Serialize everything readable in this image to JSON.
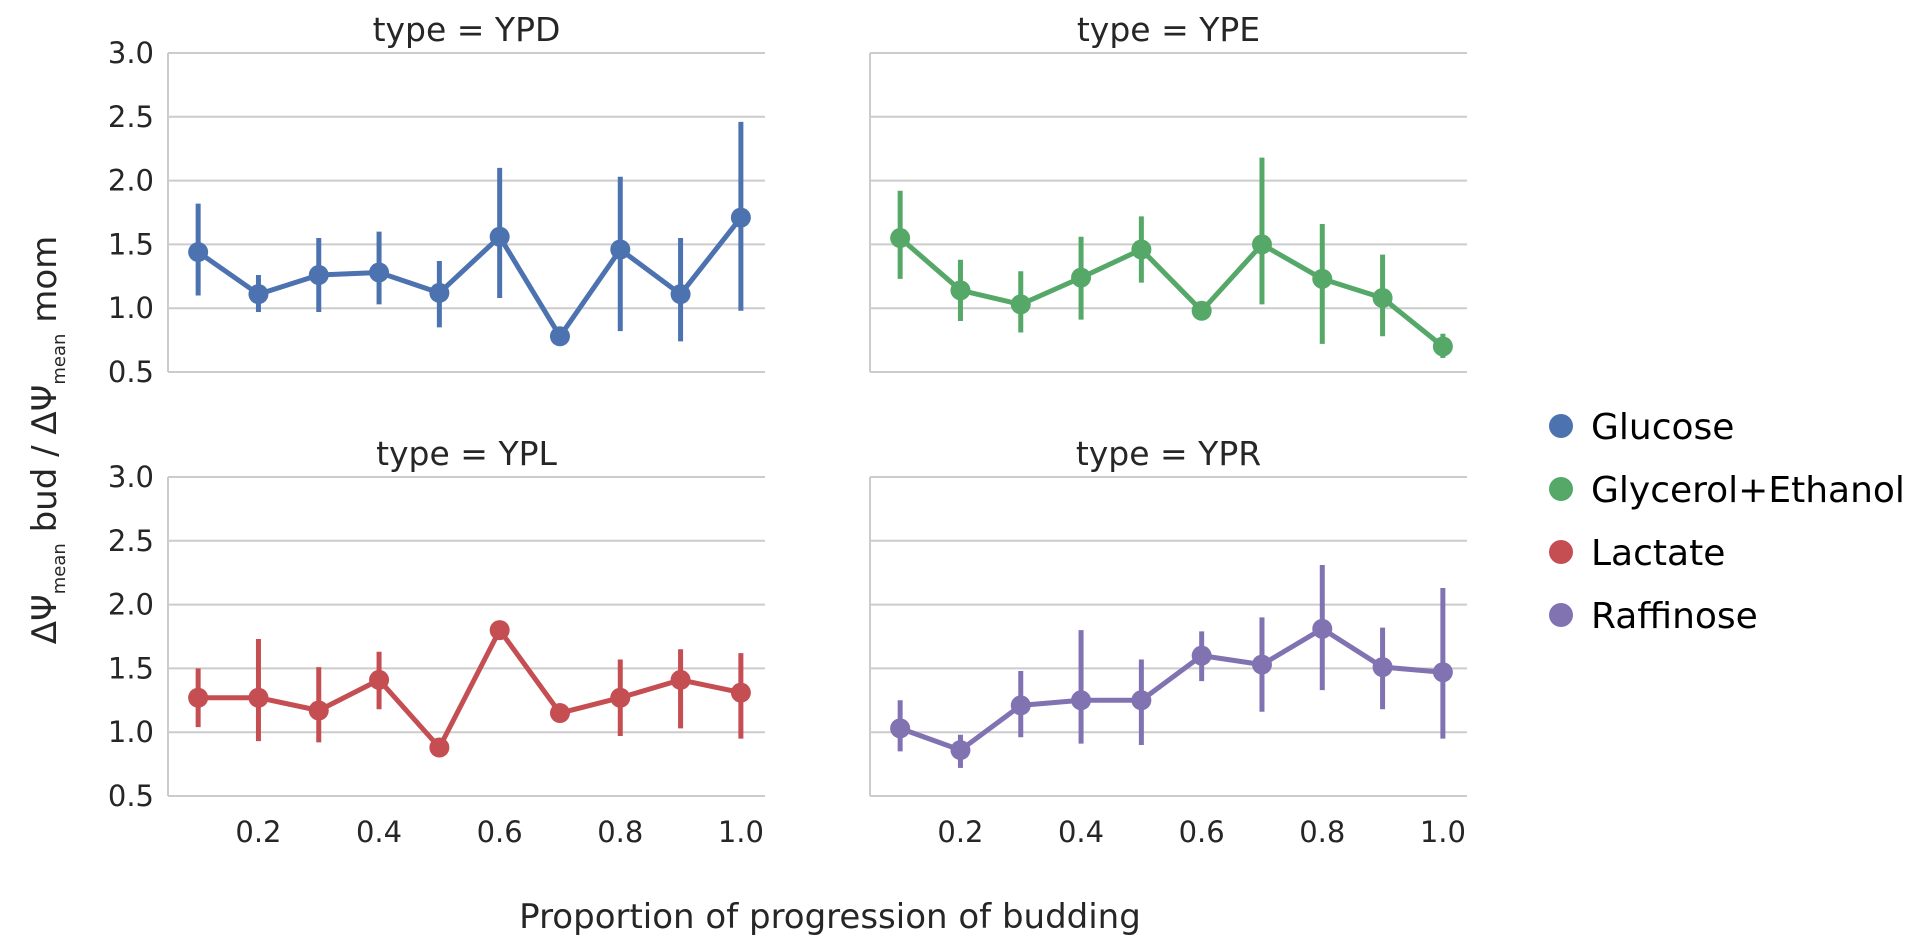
{
  "chart_data": {
    "type": "line",
    "xlabel": "Proportion of progression of budding",
    "ylabel": {
      "part1": "ΔΨ",
      "sub1": "mean",
      "part2": " bud / ΔΨ",
      "sub2": "mean",
      "part3": " mom"
    },
    "x_ticks": [
      0.2,
      0.4,
      0.6,
      0.8,
      1.0
    ],
    "x_tick_labels": [
      "0.2",
      "0.4",
      "0.6",
      "0.8",
      "1.0"
    ],
    "y_ticks": [
      0.5,
      1.0,
      1.5,
      2.0,
      2.5,
      3.0
    ],
    "y_tick_labels": [
      "0.5",
      "1.0",
      "1.5",
      "2.0",
      "2.5",
      "3.0"
    ],
    "xlim": [
      0.05,
      1.04
    ],
    "ylim": [
      0.5,
      3.0
    ],
    "grid": "horizontal",
    "legend": {
      "placement": "right",
      "entries": [
        {
          "label": "Glucose",
          "color": "#4c72b0"
        },
        {
          "label": "Glycerol+Ethanol",
          "color": "#55a868"
        },
        {
          "label": "Lactate",
          "color": "#c44e52"
        },
        {
          "label": "Raffinose",
          "color": "#8172b2"
        }
      ]
    },
    "panels": [
      {
        "title": "type = YPD",
        "series": "Glucose",
        "color": "#4c72b0",
        "points": [
          {
            "x": 0.1,
            "y": 1.44,
            "lo": 1.1,
            "hi": 1.82
          },
          {
            "x": 0.2,
            "y": 1.11,
            "lo": 0.97,
            "hi": 1.26
          },
          {
            "x": 0.3,
            "y": 1.26,
            "lo": 0.97,
            "hi": 1.55
          },
          {
            "x": 0.4,
            "y": 1.28,
            "lo": 1.03,
            "hi": 1.6
          },
          {
            "x": 0.5,
            "y": 1.12,
            "lo": 0.85,
            "hi": 1.37
          },
          {
            "x": 0.6,
            "y": 1.56,
            "lo": 1.08,
            "hi": 2.1
          },
          {
            "x": 0.7,
            "y": 0.78,
            "lo": 0.78,
            "hi": 0.78
          },
          {
            "x": 0.8,
            "y": 1.46,
            "lo": 0.82,
            "hi": 2.03
          },
          {
            "x": 0.9,
            "y": 1.11,
            "lo": 0.74,
            "hi": 1.55
          },
          {
            "x": 1.0,
            "y": 1.71,
            "lo": 0.98,
            "hi": 2.46
          }
        ]
      },
      {
        "title": "type = YPE",
        "series": "Glycerol+Ethanol",
        "color": "#55a868",
        "points": [
          {
            "x": 0.1,
            "y": 1.55,
            "lo": 1.23,
            "hi": 1.92
          },
          {
            "x": 0.2,
            "y": 1.14,
            "lo": 0.9,
            "hi": 1.38
          },
          {
            "x": 0.3,
            "y": 1.03,
            "lo": 0.81,
            "hi": 1.29
          },
          {
            "x": 0.4,
            "y": 1.24,
            "lo": 0.91,
            "hi": 1.56
          },
          {
            "x": 0.5,
            "y": 1.46,
            "lo": 1.2,
            "hi": 1.72
          },
          {
            "x": 0.6,
            "y": 0.98,
            "lo": 0.98,
            "hi": 0.98
          },
          {
            "x": 0.7,
            "y": 1.5,
            "lo": 1.03,
            "hi": 2.18
          },
          {
            "x": 0.8,
            "y": 1.23,
            "lo": 0.72,
            "hi": 1.66
          },
          {
            "x": 0.9,
            "y": 1.08,
            "lo": 0.78,
            "hi": 1.42
          },
          {
            "x": 1.0,
            "y": 0.7,
            "lo": 0.61,
            "hi": 0.8
          }
        ]
      },
      {
        "title": "type = YPL",
        "series": "Lactate",
        "color": "#c44e52",
        "points": [
          {
            "x": 0.1,
            "y": 1.27,
            "lo": 1.04,
            "hi": 1.5
          },
          {
            "x": 0.2,
            "y": 1.27,
            "lo": 0.93,
            "hi": 1.73
          },
          {
            "x": 0.3,
            "y": 1.17,
            "lo": 0.92,
            "hi": 1.51
          },
          {
            "x": 0.4,
            "y": 1.41,
            "lo": 1.18,
            "hi": 1.63
          },
          {
            "x": 0.5,
            "y": 0.88,
            "lo": 0.88,
            "hi": 0.88
          },
          {
            "x": 0.6,
            "y": 1.8,
            "lo": 1.8,
            "hi": 1.8
          },
          {
            "x": 0.7,
            "y": 1.15,
            "lo": 1.15,
            "hi": 1.15
          },
          {
            "x": 0.8,
            "y": 1.27,
            "lo": 0.97,
            "hi": 1.57
          },
          {
            "x": 0.9,
            "y": 1.41,
            "lo": 1.03,
            "hi": 1.65
          },
          {
            "x": 1.0,
            "y": 1.31,
            "lo": 0.95,
            "hi": 1.62
          }
        ]
      },
      {
        "title": "type = YPR",
        "series": "Raffinose",
        "color": "#8172b2",
        "points": [
          {
            "x": 0.1,
            "y": 1.03,
            "lo": 0.85,
            "hi": 1.25
          },
          {
            "x": 0.2,
            "y": 0.86,
            "lo": 0.72,
            "hi": 0.98
          },
          {
            "x": 0.3,
            "y": 1.21,
            "lo": 0.96,
            "hi": 1.48
          },
          {
            "x": 0.4,
            "y": 1.25,
            "lo": 0.91,
            "hi": 1.8
          },
          {
            "x": 0.5,
            "y": 1.25,
            "lo": 0.9,
            "hi": 1.57
          },
          {
            "x": 0.6,
            "y": 1.6,
            "lo": 1.4,
            "hi": 1.79
          },
          {
            "x": 0.7,
            "y": 1.53,
            "lo": 1.16,
            "hi": 1.9
          },
          {
            "x": 0.8,
            "y": 1.81,
            "lo": 1.33,
            "hi": 2.31
          },
          {
            "x": 0.9,
            "y": 1.51,
            "lo": 1.18,
            "hi": 1.82
          },
          {
            "x": 1.0,
            "y": 1.47,
            "lo": 0.95,
            "hi": 2.13
          }
        ]
      }
    ]
  }
}
